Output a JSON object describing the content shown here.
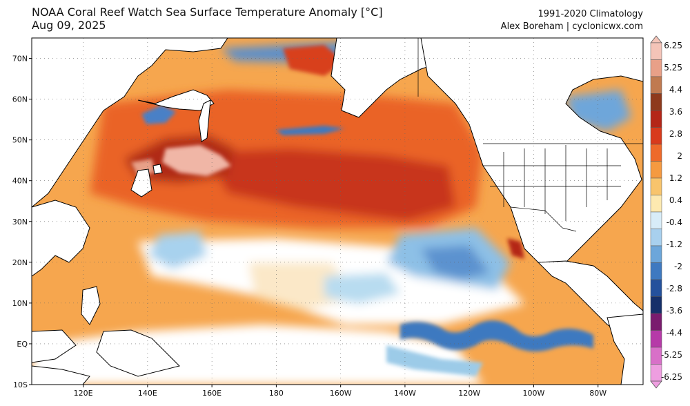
{
  "header": {
    "title_line1": "NOAA Coral Reef Watch Sea Surface Temperature Anomaly [°C]",
    "title_line2": "Aug 09, 2025",
    "credit_line1": "1991-2020 Climatology",
    "credit_line2": "Alex Boreham | cyclonicwx.com"
  },
  "map": {
    "lat_ticks": [
      {
        "value": 70,
        "label": "70N"
      },
      {
        "value": 60,
        "label": "60N"
      },
      {
        "value": 50,
        "label": "50N"
      },
      {
        "value": 40,
        "label": "40N"
      },
      {
        "value": 30,
        "label": "30N"
      },
      {
        "value": 20,
        "label": "20N"
      },
      {
        "value": 10,
        "label": "10N"
      },
      {
        "value": 0,
        "label": "EQ"
      },
      {
        "value": -10,
        "label": "10S"
      }
    ],
    "lon_ticks": [
      {
        "value": 120,
        "label": "120E"
      },
      {
        "value": 140,
        "label": "140E"
      },
      {
        "value": 160,
        "label": "160E"
      },
      {
        "value": 180,
        "label": "180"
      },
      {
        "value": 200,
        "label": "160W"
      },
      {
        "value": 220,
        "label": "140W"
      },
      {
        "value": 240,
        "label": "120W"
      },
      {
        "value": 260,
        "label": "100W"
      },
      {
        "value": 280,
        "label": "80W"
      }
    ],
    "lon_range": [
      104,
      294
    ],
    "lat_range": [
      -10,
      75
    ],
    "colors": {
      "ocean_warm": "#f5a04a",
      "ocean_hot": "#d8401c",
      "extreme": "#f2b0a6",
      "cool": "#9ccbe8",
      "cold": "#3e79c0",
      "neutral": "#ffffff",
      "land": "#ffffff"
    }
  },
  "colorbar": {
    "labels": [
      "6.25",
      "5.25",
      "4.4",
      "3.6",
      "2.8",
      "2",
      "1.2",
      "0.4",
      "-0.4",
      "-1.2",
      "-2",
      "-2.8",
      "-3.6",
      "-4.4",
      "-5.25",
      "-6.25"
    ],
    "colors": [
      "#f4c4b8",
      "#e8a088",
      "#c07a50",
      "#8e3a1c",
      "#b42618",
      "#d83a1c",
      "#ee6a2a",
      "#f59a40",
      "#f8c46c",
      "#fde9b0",
      "#d8ecf8",
      "#a8d0ee",
      "#6ca6da",
      "#3e79c0",
      "#25519c",
      "#16306a",
      "#7a1c6e",
      "#b63aa8",
      "#d870c8",
      "#ee9ee0"
    ]
  }
}
